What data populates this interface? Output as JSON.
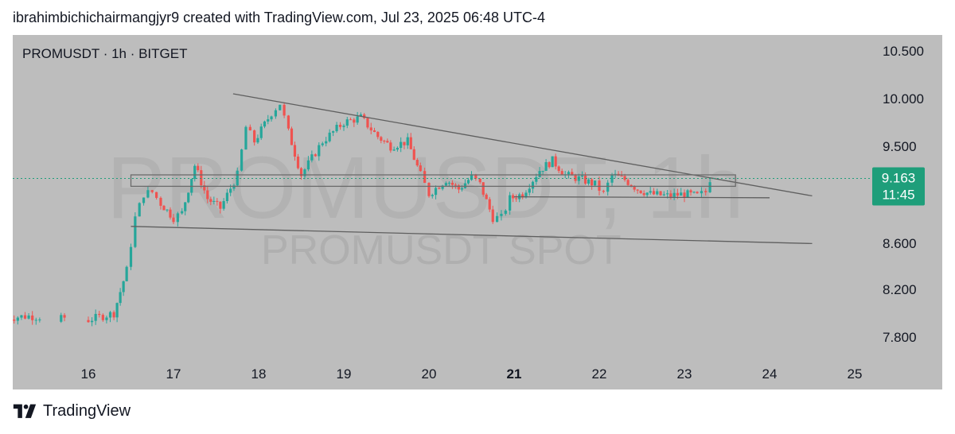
{
  "header": {
    "text": "ibrahimbichichairmangjyr9 created with TradingView.com, Jul 23, 2025 06:48 UTC-4"
  },
  "chart_label": "PROMUSDT · 1h · BITGET",
  "watermark": {
    "main": "PROMUSDT, 1h",
    "sub": "PROMUSDT SPOT"
  },
  "footer": {
    "brand": "TradingView",
    "logo_icon": "tradingview-logo-icon"
  },
  "colors": {
    "background": "#bdbdbd",
    "up": "#26a69a",
    "down": "#ef5350",
    "price_tag": "#1e9e7a",
    "trendline": "#5f5f5f",
    "zone_border": "#6b6b6b",
    "price_dotted": "#1e9e7a"
  },
  "chart_data": {
    "type": "candlestick",
    "symbol": "PROMUSDT",
    "interval": "1h",
    "exchange": "BITGET",
    "y_ticks": [
      "10.500",
      "10.000",
      "9.500",
      "8.600",
      "8.200",
      "7.800"
    ],
    "y_tick_values": [
      10.5,
      10.0,
      9.5,
      8.6,
      8.2,
      7.8
    ],
    "x_ticks": [
      "16",
      "17",
      "18",
      "19",
      "20",
      "21",
      "22",
      "23",
      "24",
      "25"
    ],
    "x_tick_bold": "21",
    "last_price": "9.163",
    "countdown": "11:45",
    "annotations": {
      "descending_resistance": {
        "from": [
          "17.7",
          10.05
        ],
        "to": [
          "24.5",
          8.98
        ]
      },
      "lower_support": {
        "from": [
          "16.5",
          8.66
        ],
        "to": [
          "24.5",
          8.48
        ]
      },
      "upper_support": {
        "from": [
          "21.0",
          8.97
        ],
        "to": [
          "24.0",
          8.96
        ]
      },
      "resistance_zone": {
        "from": "16.5",
        "to": "23.6",
        "low": 9.08,
        "high": 9.2
      }
    },
    "price_path": [
      [
        "15.0",
        7.7
      ],
      [
        "15.3",
        7.72
      ],
      [
        "15.6",
        7.7
      ],
      [
        "16.0",
        7.68
      ],
      [
        "16.3",
        7.75
      ],
      [
        "16.45",
        8.2
      ],
      [
        "16.55",
        8.75
      ],
      [
        "16.65",
        9.0
      ],
      [
        "16.75",
        9.02
      ],
      [
        "16.85",
        8.9
      ],
      [
        "17.0",
        8.75
      ],
      [
        "17.1",
        8.8
      ],
      [
        "17.25",
        9.3
      ],
      [
        "17.4",
        8.95
      ],
      [
        "17.55",
        8.85
      ],
      [
        "17.75",
        9.2
      ],
      [
        "17.85",
        9.7
      ],
      [
        "17.95",
        9.55
      ],
      [
        "18.15",
        9.85
      ],
      [
        "18.25",
        9.95
      ],
      [
        "18.35",
        9.65
      ],
      [
        "18.5",
        9.2
      ],
      [
        "18.75",
        9.55
      ],
      [
        "19.0",
        9.75
      ],
      [
        "19.2",
        9.8
      ],
      [
        "19.4",
        9.6
      ],
      [
        "19.55",
        9.5
      ],
      [
        "19.75",
        9.55
      ],
      [
        "19.9",
        9.2
      ],
      [
        "20.0",
        9.0
      ],
      [
        "20.2",
        9.15
      ],
      [
        "20.35",
        9.05
      ],
      [
        "20.5",
        9.18
      ],
      [
        "20.6",
        9.1
      ],
      [
        "20.75",
        8.75
      ],
      [
        "20.85",
        8.75
      ],
      [
        "20.95",
        8.95
      ],
      [
        "21.1",
        9.0
      ],
      [
        "21.3",
        9.25
      ],
      [
        "21.45",
        9.35
      ],
      [
        "21.6",
        9.2
      ],
      [
        "21.8",
        9.15
      ],
      [
        "21.95",
        9.1
      ],
      [
        "22.05",
        9.0
      ],
      [
        "22.15",
        9.2
      ],
      [
        "22.3",
        9.15
      ],
      [
        "22.45",
        9.05
      ],
      [
        "22.6",
        9.0
      ],
      [
        "22.8",
        8.98
      ],
      [
        "23.0",
        9.0
      ],
      [
        "23.15",
        8.98
      ],
      [
        "23.25",
        9.02
      ],
      [
        "23.3",
        9.16
      ]
    ]
  }
}
